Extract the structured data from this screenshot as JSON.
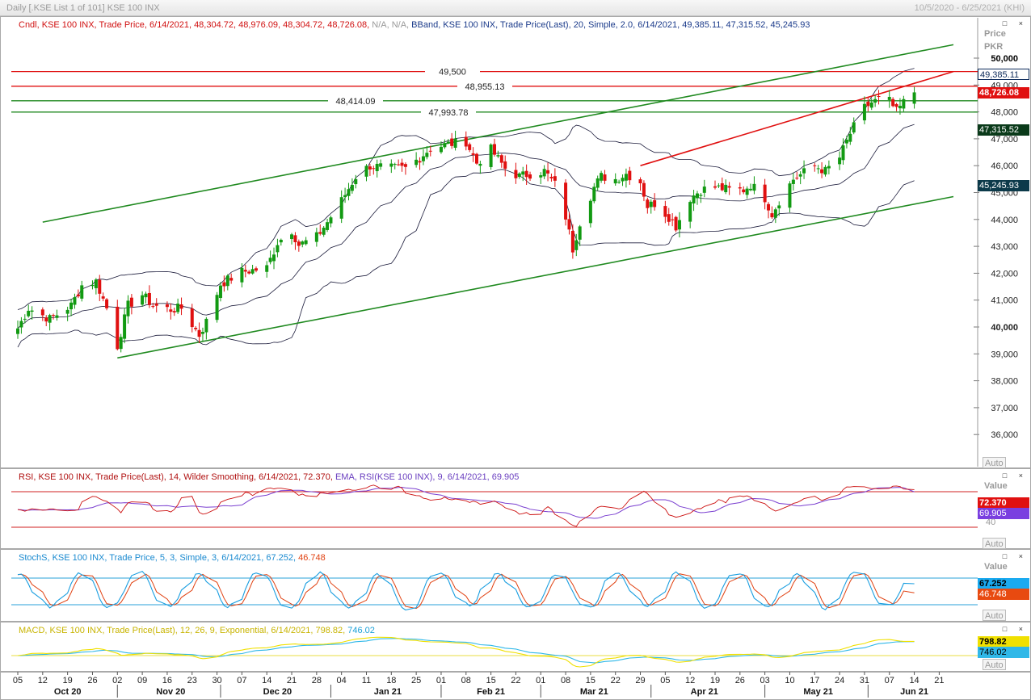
{
  "window": {
    "title": "Daily [.KSE List 1 of 101] KSE 100 INX",
    "date_range": "10/5/2020 - 6/25/2021 (KHI)"
  },
  "main_pane": {
    "legend_cndl_prefix": "Cndl, KSE 100 INX, Trade Price, 6/14/2021, 48,304.72, 48,976.09, 48,304.72, 48,726.08, ",
    "legend_cndl_na": "N/A, N/A, ",
    "legend_bband": "BBand, KSE 100 INX, Trade Price(Last),  20, Simple, 2.0, 6/14/2021, 49,385.11, 47,315.52, 45,245.93",
    "axis_title_1": "Price",
    "axis_title_2": "PKR",
    "auto_label": "Auto",
    "price_labels": [
      "50,000",
      "49,000",
      "48,000",
      "47,000",
      "46,000",
      "45,000",
      "44,000",
      "43,000",
      "42,000",
      "41,000",
      "40,000",
      "39,000",
      "38,000",
      "37,000",
      "36,000"
    ],
    "level_labels": [
      "49,500",
      "48,955.13",
      "48,414.09",
      "47,993.78"
    ],
    "badge_upper": "49,385.11",
    "badge_close": "48,726.08",
    "badge_mid": "47,315.52",
    "badge_lower": "45,245.93"
  },
  "rsi_pane": {
    "legend_rsi": "RSI, KSE 100 INX, Trade Price(Last),  14, Wilder Smoothing, 6/14/2021, 72.370, ",
    "legend_ema": "EMA, RSI(KSE 100 INX),  9, 6/14/2021, 69.905",
    "axis_title": "Value",
    "axis_40": "40",
    "badge_rsi": "72.370",
    "badge_ema": "69.905",
    "auto_label": "Auto"
  },
  "stoch_pane": {
    "legend_k": "StochS, KSE 100 INX, Trade Price,  5, 3, Simple, 3, 6/14/2021, 67.252, ",
    "legend_d": "46.748",
    "axis_title": "Value",
    "badge_k": "67.252",
    "badge_d": "46.748",
    "auto_label": "Auto"
  },
  "macd_pane": {
    "legend_main": "MACD, KSE 100 INX, Trade Price(Last),  12, 26, 9, Exponential, 6/14/2021, 798.82, ",
    "legend_signal": "746.02",
    "badge_macd": "798.82",
    "badge_signal": "746.02",
    "auto_label": "Auto"
  },
  "time_axis": {
    "day_labels": [
      "05",
      "12",
      "19",
      "26",
      "02",
      "09",
      "16",
      "23",
      "30",
      "07",
      "14",
      "21",
      "28",
      "04",
      "11",
      "18",
      "25",
      "01",
      "08",
      "15",
      "22",
      "01",
      "08",
      "15",
      "22",
      "29",
      "05",
      "12",
      "19",
      "26",
      "03",
      "10",
      "17",
      "24",
      "31",
      "07",
      "14",
      "21"
    ],
    "month_labels": [
      "Oct 20",
      "Nov 20",
      "Dec 20",
      "Jan 21",
      "Feb 21",
      "Mar 21",
      "Apr 21",
      "May 21",
      "Jun 21"
    ]
  },
  "colors": {
    "bull": "#129a12",
    "bear": "#e01010",
    "resistance": "#e01010",
    "support": "#208a20",
    "rsi": "#cc1010",
    "rsi_ema": "#7a3fd0",
    "stoch_k": "#1a9ee0",
    "stoch_d": "#e04010",
    "macd": "#f0e000",
    "macd_signal": "#30b8e8"
  },
  "chart_data": {
    "type": "candlestick",
    "title": "Daily [.KSE List 1 of 101] KSE 100 INX",
    "ylabel": "Price PKR",
    "ylim": [
      35400,
      50700
    ],
    "x_range": [
      "2020-10-05",
      "2021-06-25"
    ],
    "last_candle": {
      "date": "6/14/2021",
      "open": 48304.72,
      "high": 48976.09,
      "low": 48304.72,
      "close": 48726.08
    },
    "bollinger": {
      "period": 20,
      "stddev": 2.0,
      "upper": 49385.11,
      "middle": 47315.52,
      "lower": 45245.93
    },
    "horizontal_levels": [
      {
        "value": 49500,
        "color": "red"
      },
      {
        "value": 48955.13,
        "color": "red"
      },
      {
        "value": 48414.09,
        "color": "green"
      },
      {
        "value": 47993.78,
        "color": "green"
      }
    ],
    "trendlines": [
      {
        "color": "green",
        "from": [
          "2020-10-12",
          43900
        ],
        "to": [
          "2021-06-25",
          50500
        ]
      },
      {
        "color": "green",
        "from": [
          "2020-11-02",
          38850
        ],
        "to": [
          "2021-06-25",
          44850
        ]
      },
      {
        "color": "red",
        "from": [
          "2021-03-29",
          46000
        ],
        "to": [
          "2021-06-25",
          49500
        ]
      }
    ],
    "close_anchors": [
      [
        "2020-10-05",
        39950
      ],
      [
        "2020-10-08",
        40700
      ],
      [
        "2020-10-14",
        40300
      ],
      [
        "2020-10-20",
        40800
      ],
      [
        "2020-10-23",
        41550
      ],
      [
        "2020-10-27",
        41700
      ],
      [
        "2020-10-30",
        40700
      ],
      [
        "2020-11-02",
        39300
      ],
      [
        "2020-11-05",
        40800
      ],
      [
        "2020-11-09",
        41200
      ],
      [
        "2020-11-12",
        40800
      ],
      [
        "2020-11-17",
        40650
      ],
      [
        "2020-11-20",
        40700
      ],
      [
        "2020-11-25",
        39700
      ],
      [
        "2020-11-27",
        40200
      ],
      [
        "2020-12-01",
        41600
      ],
      [
        "2020-12-07",
        42050
      ],
      [
        "2020-12-14",
        42200
      ],
      [
        "2020-12-17",
        43150
      ],
      [
        "2020-12-21",
        43600
      ],
      [
        "2020-12-23",
        43050
      ],
      [
        "2020-12-28",
        43350
      ],
      [
        "2020-12-31",
        43900
      ],
      [
        "2021-01-04",
        44700
      ],
      [
        "2021-01-08",
        45600
      ],
      [
        "2021-01-12",
        46000
      ],
      [
        "2021-01-18",
        45900
      ],
      [
        "2021-01-22",
        45900
      ],
      [
        "2021-01-26",
        46300
      ],
      [
        "2021-01-29",
        46650
      ],
      [
        "2021-02-03",
        46800
      ],
      [
        "2021-02-08",
        46900
      ],
      [
        "2021-02-11",
        46100
      ],
      [
        "2021-02-15",
        46600
      ],
      [
        "2021-02-19",
        45900
      ],
      [
        "2021-02-23",
        45600
      ],
      [
        "2021-02-26",
        45700
      ],
      [
        "2021-03-02",
        45800
      ],
      [
        "2021-03-05",
        45300
      ],
      [
        "2021-03-08",
        44100
      ],
      [
        "2021-03-10",
        42900
      ],
      [
        "2021-03-12",
        43900
      ],
      [
        "2021-03-16",
        45200
      ],
      [
        "2021-03-18",
        45600
      ],
      [
        "2021-03-22",
        45500
      ],
      [
        "2021-03-25",
        45700
      ],
      [
        "2021-03-29",
        45400
      ],
      [
        "2021-03-31",
        44500
      ],
      [
        "2021-04-02",
        44600
      ],
      [
        "2021-04-06",
        44100
      ],
      [
        "2021-04-08",
        43750
      ],
      [
        "2021-04-12",
        44800
      ],
      [
        "2021-04-15",
        45100
      ],
      [
        "2021-04-19",
        45200
      ],
      [
        "2021-04-23",
        45100
      ],
      [
        "2021-04-27",
        45100
      ],
      [
        "2021-04-29",
        45300
      ],
      [
        "2021-05-03",
        44800
      ],
      [
        "2021-05-05",
        44200
      ],
      [
        "2021-05-07",
        44700
      ],
      [
        "2021-05-11",
        45500
      ],
      [
        "2021-05-17",
        46000
      ],
      [
        "2021-05-20",
        45800
      ],
      [
        "2021-05-24",
        46300
      ],
      [
        "2021-05-27",
        47200
      ],
      [
        "2021-05-31",
        48150
      ],
      [
        "2021-06-02",
        48350
      ],
      [
        "2021-06-04",
        48450
      ],
      [
        "2021-06-07",
        48400
      ],
      [
        "2021-06-09",
        48000
      ],
      [
        "2021-06-11",
        48350
      ],
      [
        "2021-06-14",
        48726
      ]
    ],
    "indicators": {
      "rsi": {
        "period": 14,
        "smoothing": "Wilder",
        "value": 72.37,
        "ema_period": 9,
        "ema_value": 69.905
      },
      "stochastic": {
        "k": 5,
        "d": 3,
        "smooth": 3,
        "method": "Simple",
        "k_value": 67.252,
        "d_value": 46.748
      },
      "macd": {
        "fast": 12,
        "slow": 26,
        "signal": 9,
        "method": "Exponential",
        "macd": 798.82,
        "signal_value": 746.02
      }
    }
  }
}
